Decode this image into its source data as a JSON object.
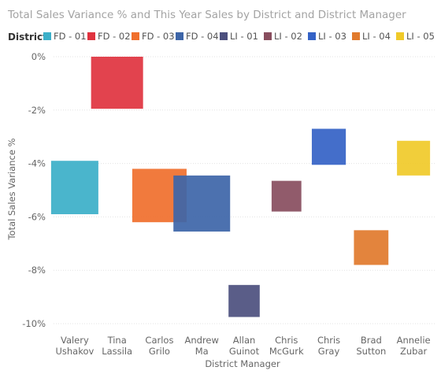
{
  "chart_data": {
    "type": "bar",
    "title": "Total Sales Variance % and This Year Sales by District and District Manager",
    "legend": {
      "title": "District",
      "entries": [
        {
          "name": "FD - 01",
          "color": "#3BAFC8"
        },
        {
          "name": "FD - 02",
          "color": "#E0333F"
        },
        {
          "name": "FD - 03",
          "color": "#F06F2C"
        },
        {
          "name": "FD - 04",
          "color": "#3D65A8"
        },
        {
          "name": "LI - 01",
          "color": "#4C4F7E"
        },
        {
          "name": "LI - 02",
          "color": "#884D5E"
        },
        {
          "name": "LI - 03",
          "color": "#3462C6"
        },
        {
          "name": "LI - 04",
          "color": "#E17A2D"
        },
        {
          "name": "LI - 05",
          "color": "#F0CA29"
        }
      ],
      "placement": "top-left"
    },
    "xlabel": "District Manager",
    "ylabel": "Total Sales Variance %",
    "ylim": [
      -10,
      0
    ],
    "yticks": [
      "0%",
      "-2%",
      "-4%",
      "-6%",
      "-8%",
      "-10%"
    ],
    "yticks_values": [
      0,
      -2,
      -4,
      -6,
      -8,
      -10
    ],
    "grid": true,
    "categories": [
      {
        "label": [
          "Valery",
          "Ushakov"
        ]
      },
      {
        "label": [
          "Tina",
          "Lassila"
        ]
      },
      {
        "label": [
          "Carlos",
          "Grilo"
        ]
      },
      {
        "label": [
          "Andrew",
          "Ma"
        ]
      },
      {
        "label": [
          "Allan",
          "Guinot"
        ]
      },
      {
        "label": [
          "Chris",
          "McGurk"
        ]
      },
      {
        "label": [
          "Chris",
          "Gray"
        ]
      },
      {
        "label": [
          "Brad",
          "Sutton"
        ]
      },
      {
        "label": [
          "Annelie",
          "Zubar"
        ]
      }
    ],
    "bars": [
      {
        "category_index": 0,
        "district": "FD - 01",
        "top": -3.9,
        "bottom": -5.9,
        "this_year_sales_relative": 1.0,
        "color": "#3BAFC8"
      },
      {
        "category_index": 1,
        "district": "FD - 02",
        "top": 0.0,
        "bottom": -1.95,
        "this_year_sales_relative": 1.1,
        "color": "#E0333F"
      },
      {
        "category_index": 2,
        "district": "FD - 03",
        "top": -4.2,
        "bottom": -6.2,
        "this_year_sales_relative": 1.15,
        "color": "#F06F2C"
      },
      {
        "category_index": 3,
        "district": "FD - 04",
        "top": -4.45,
        "bottom": -6.55,
        "this_year_sales_relative": 1.2,
        "color": "#3D65A8"
      },
      {
        "category_index": 4,
        "district": "LI - 01",
        "top": -8.55,
        "bottom": -9.75,
        "this_year_sales_relative": 0.66,
        "color": "#4C4F7E"
      },
      {
        "category_index": 5,
        "district": "LI - 02",
        "top": -4.65,
        "bottom": -5.8,
        "this_year_sales_relative": 0.63,
        "color": "#884D5E"
      },
      {
        "category_index": 6,
        "district": "LI - 03",
        "top": -2.7,
        "bottom": -4.05,
        "this_year_sales_relative": 0.72,
        "color": "#3462C6"
      },
      {
        "category_index": 7,
        "district": "LI - 04",
        "top": -6.5,
        "bottom": -7.8,
        "this_year_sales_relative": 0.73,
        "color": "#E17A2D"
      },
      {
        "category_index": 8,
        "district": "LI - 05",
        "top": -3.15,
        "bottom": -4.45,
        "this_year_sales_relative": 0.7,
        "color": "#F0CA29"
      }
    ]
  }
}
